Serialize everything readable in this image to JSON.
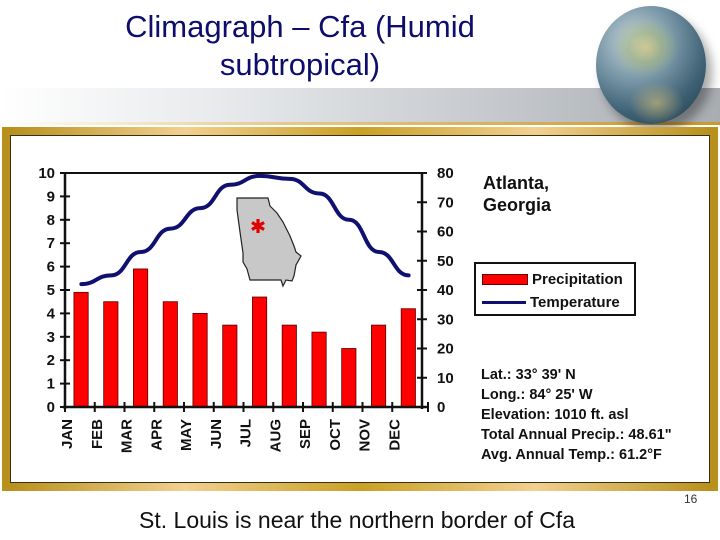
{
  "slide": {
    "title": "Climagraph – Cfa (Humid subtropical)",
    "caption": "St. Louis is near the northern border of Cfa",
    "page_number": "16"
  },
  "chart": {
    "city": "Atlanta,",
    "state": "Georgia",
    "legend": {
      "precipitation": "Precipitation",
      "temperature": "Temperature"
    },
    "stats": {
      "lat": "Lat.: 33° 39' N",
      "long": "Long.: 84° 25' W",
      "elevation": "Elevation: 1010 ft. asl",
      "total_precip": "Total Annual Precip.: 48.61\"",
      "avg_temp": "Avg. Annual Temp.: 61.2°F"
    },
    "colors": {
      "precipitation": "#ff0000",
      "temperature": "#101070",
      "frame": "#c9a024",
      "title": "#0d0d6b"
    }
  },
  "chart_data": {
    "type": "bar+line",
    "title": "Atlanta, Georgia",
    "categories": [
      "JAN",
      "FEB",
      "MAR",
      "APR",
      "MAY",
      "JUN",
      "JUL",
      "AUG",
      "SEP",
      "OCT",
      "NOV",
      "DEC"
    ],
    "series": [
      {
        "name": "Precipitation",
        "type": "bar",
        "axis": "left",
        "unit": "inches",
        "values": [
          4.9,
          4.5,
          5.9,
          4.5,
          4.0,
          3.5,
          4.7,
          3.5,
          3.2,
          2.5,
          3.5,
          4.2
        ]
      },
      {
        "name": "Temperature",
        "type": "line",
        "axis": "right",
        "unit": "°F",
        "values": [
          42,
          45,
          53,
          61,
          68,
          76,
          79,
          78,
          73,
          64,
          53,
          45
        ]
      }
    ],
    "left_axis": {
      "ticks": [
        0,
        1,
        2,
        3,
        4,
        5,
        6,
        7,
        8,
        9,
        10
      ],
      "ylim": [
        0,
        10
      ]
    },
    "right_axis": {
      "ticks": [
        0,
        10,
        20,
        30,
        40,
        50,
        60,
        70,
        80
      ],
      "ylim": [
        0,
        80
      ]
    },
    "legend_position": "right",
    "grid": false,
    "annotations": [
      "Lat.: 33° 39' N",
      "Long.: 84° 25' W",
      "Elevation: 1010 ft. asl",
      "Total Annual Precip.: 48.61\"",
      "Avg. Annual Temp.: 61.2°F"
    ]
  }
}
